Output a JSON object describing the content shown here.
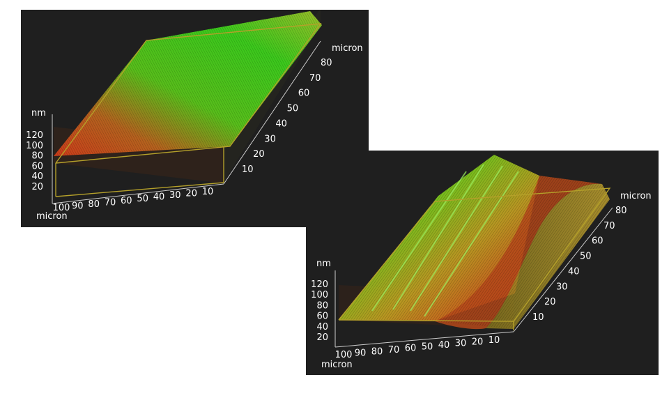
{
  "chart_data": [
    {
      "type": "surface3d",
      "x_axis": {
        "label": "micron",
        "ticks": [
          "100",
          "90",
          "80",
          "70",
          "60",
          "50",
          "40",
          "30",
          "20",
          "10"
        ]
      },
      "y_axis": {
        "label": "micron",
        "ticks": [
          "10",
          "20",
          "30",
          "40",
          "50",
          "60",
          "70",
          "80"
        ]
      },
      "z_axis": {
        "label": "nm",
        "ticks": [
          "120",
          "100",
          "80",
          "60",
          "40",
          "20"
        ]
      },
      "surface": "mostly flat plateau, slight ridge",
      "colors": {
        "high": "#33e61a",
        "mid": "#c8b422",
        "low": "#e0401a",
        "frame": "#b4a02a"
      }
    },
    {
      "type": "surface3d",
      "x_axis": {
        "label": "micron",
        "ticks": [
          "100",
          "90",
          "80",
          "70",
          "60",
          "50",
          "40",
          "30",
          "20",
          "10"
        ]
      },
      "y_axis": {
        "label": "micron",
        "ticks": [
          "10",
          "20",
          "30",
          "40",
          "50",
          "60",
          "70",
          "80"
        ]
      },
      "z_axis": {
        "label": "nm",
        "ticks": [
          "120",
          "100",
          "80",
          "60",
          "40",
          "20"
        ]
      },
      "surface": "ridged profile with a trough on the right side",
      "colors": {
        "high": "#33e61a",
        "mid": "#c8b422",
        "low": "#e0401a",
        "frame": "#b4a02a"
      }
    }
  ]
}
